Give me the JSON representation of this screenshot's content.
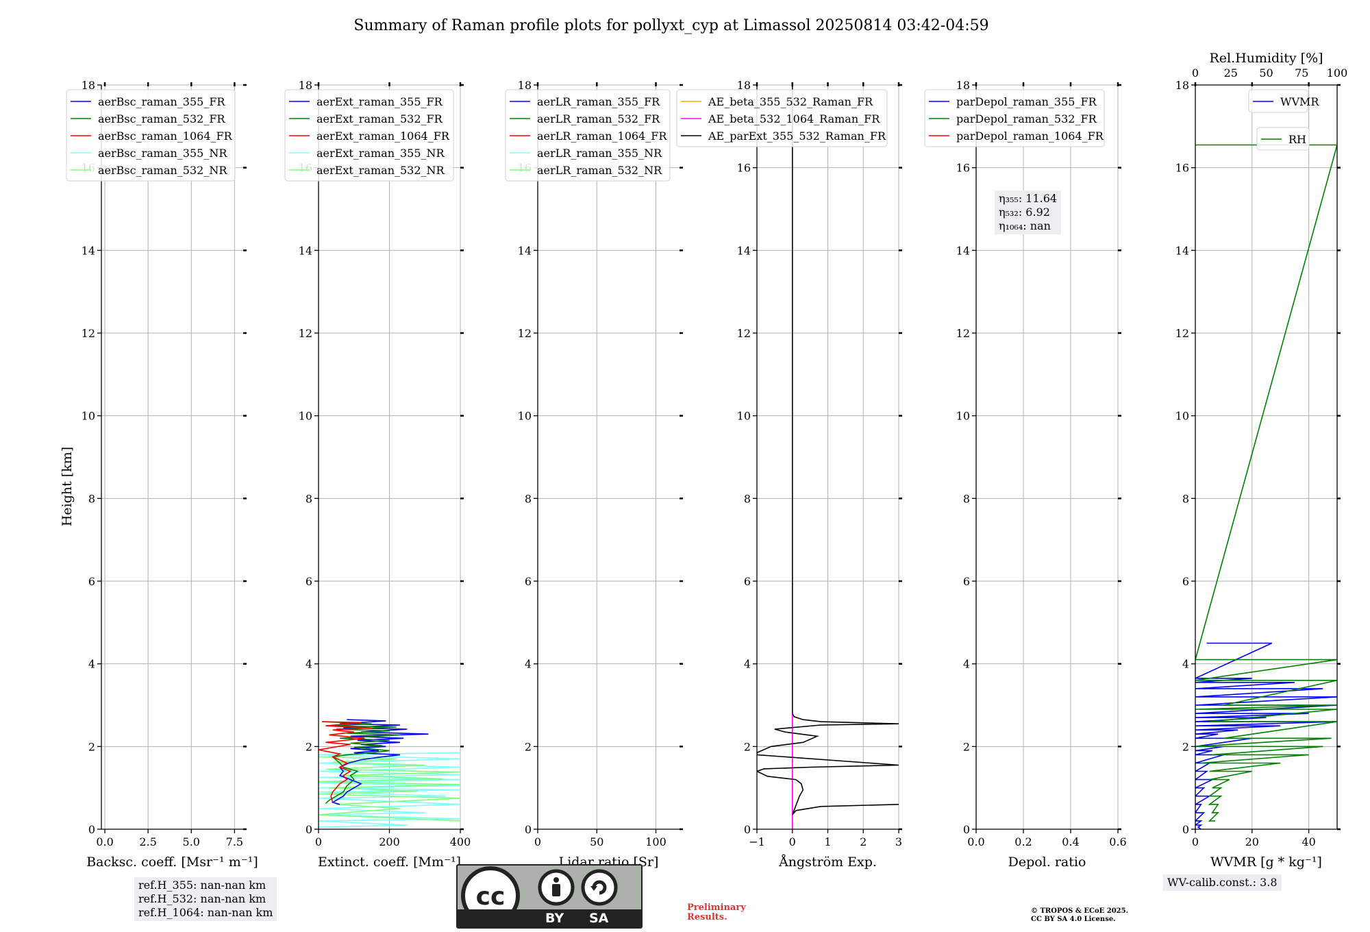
{
  "title": "Summary of Raman profile plots for pollyxt_cyp at Limassol 20250814 03:42-04:59",
  "ylabel": "Height [km]",
  "colors": {
    "blue": "#0000ff",
    "green": "#008000",
    "red": "#ff0000",
    "cyan": "#80ffff",
    "lightgreen": "#80ff80",
    "orange": "#ffa500",
    "magenta": "#ff00ff",
    "black": "#000000",
    "grid": "#b0b0b0"
  },
  "chart_data": [
    {
      "type": "line",
      "id": "bsc",
      "xlabel": "Backsc. coeff. [Msr⁻¹ m⁻¹]",
      "xlim": [
        -0.2,
        8.0
      ],
      "ylim": [
        0,
        18
      ],
      "xticks": [
        0.0,
        2.5,
        5.0,
        7.5
      ],
      "xticklabels": [
        "0.0",
        "2.5",
        "5.0",
        "7.5"
      ],
      "yticks": [
        0,
        2,
        4,
        6,
        8,
        10,
        12,
        14,
        16,
        18
      ],
      "legend": {
        "placement": "top-left",
        "entries": [
          {
            "name": "aerBsc_raman_355_FR",
            "color": "#0000ff"
          },
          {
            "name": "aerBsc_raman_532_FR",
            "color": "#008000"
          },
          {
            "name": "aerBsc_raman_1064_FR",
            "color": "#ff0000"
          },
          {
            "name": "aerBsc_raman_355_NR",
            "color": "#80ffff"
          },
          {
            "name": "aerBsc_raman_532_NR",
            "color": "#80ff80"
          }
        ]
      },
      "series": []
    },
    {
      "type": "line",
      "id": "ext",
      "xlabel": "Extinct. coeff. [Mm⁻¹]",
      "xlim": [
        0,
        400
      ],
      "ylim": [
        0,
        18
      ],
      "xticks": [
        0,
        200,
        400
      ],
      "xticklabels": [
        "0",
        "200",
        "400"
      ],
      "yticks": [
        0,
        2,
        4,
        6,
        8,
        10,
        12,
        14,
        16,
        18
      ],
      "legend": {
        "placement": "top-left",
        "entries": [
          {
            "name": "aerExt_raman_355_FR",
            "color": "#0000ff"
          },
          {
            "name": "aerExt_raman_532_FR",
            "color": "#008000"
          },
          {
            "name": "aerExt_raman_1064_FR",
            "color": "#ff0000"
          },
          {
            "name": "aerExt_raman_355_NR",
            "color": "#80ffff"
          },
          {
            "name": "aerExt_raman_532_NR",
            "color": "#80ff80"
          }
        ]
      },
      "series": [
        {
          "color": "#80ffff",
          "x": [
            400,
            0,
            400,
            0,
            400,
            0,
            400,
            0,
            400,
            0,
            400,
            0,
            400,
            0,
            360,
            0,
            400,
            0,
            300,
            0,
            400,
            0,
            250,
            0
          ],
          "y": [
            1.85,
            1.8,
            1.7,
            1.6,
            1.5,
            1.4,
            1.32,
            1.25,
            1.2,
            1.12,
            1.05,
            1.0,
            0.95,
            0.9,
            0.8,
            0.75,
            0.6,
            0.5,
            0.4,
            0.35,
            0.25,
            0.2,
            0.1,
            0.05
          ]
        },
        {
          "color": "#80ff80",
          "x": [
            0,
            220,
            40,
            300,
            20,
            400,
            60,
            350,
            0,
            400,
            30,
            280,
            0,
            400,
            50,
            230,
            0,
            400
          ],
          "y": [
            1.75,
            1.7,
            1.62,
            1.55,
            1.45,
            1.38,
            1.3,
            1.22,
            1.15,
            1.08,
            1.0,
            0.92,
            0.85,
            0.75,
            0.6,
            0.5,
            0.35,
            0.2
          ]
        },
        {
          "color": "#0000ff",
          "x": [
            80,
            190,
            60,
            230,
            70,
            250,
            120,
            310,
            90,
            240,
            110,
            230,
            120,
            190,
            90,
            170,
            100,
            230,
            180,
            120,
            85,
            60,
            70,
            60,
            90,
            120,
            100,
            80,
            70,
            50,
            40,
            60
          ],
          "y": [
            2.65,
            2.62,
            2.55,
            2.52,
            2.45,
            2.42,
            2.35,
            2.3,
            2.25,
            2.2,
            2.15,
            2.1,
            2.05,
            2.0,
            1.95,
            1.9,
            1.85,
            1.8,
            1.75,
            1.68,
            1.6,
            1.5,
            1.4,
            1.3,
            1.2,
            1.1,
            1.0,
            0.9,
            0.8,
            0.7,
            0.65,
            0.6
          ]
        },
        {
          "color": "#008000",
          "x": [
            10,
            150,
            40,
            220,
            50,
            200,
            80,
            230,
            60,
            200,
            90,
            180,
            100,
            200,
            150,
            80,
            40,
            60,
            70,
            110,
            90,
            100,
            80,
            70,
            50,
            30,
            20
          ],
          "y": [
            2.6,
            2.55,
            2.5,
            2.47,
            2.42,
            2.38,
            2.32,
            2.28,
            2.2,
            2.15,
            2.08,
            2.02,
            1.98,
            1.9,
            1.85,
            1.8,
            1.75,
            1.6,
            1.5,
            1.4,
            1.3,
            1.2,
            1.05,
            0.9,
            0.8,
            0.7,
            0.62
          ]
        },
        {
          "color": "#ff0000",
          "x": [
            10,
            120,
            20,
            150,
            40,
            100,
            30,
            130,
            20,
            90,
            0,
            60,
            40,
            80,
            60,
            90,
            70,
            80,
            60,
            50,
            40,
            35,
            40
          ],
          "y": [
            2.6,
            2.58,
            2.5,
            2.45,
            2.4,
            2.35,
            2.28,
            2.2,
            2.1,
            2.05,
            1.92,
            1.82,
            1.75,
            1.6,
            1.5,
            1.4,
            1.3,
            1.2,
            1.1,
            1.0,
            0.9,
            0.8,
            0.65
          ]
        }
      ]
    },
    {
      "type": "line",
      "id": "lr",
      "xlabel": "Lidar ratio [Sr]",
      "xlim": [
        0,
        120
      ],
      "ylim": [
        0,
        18
      ],
      "xticks": [
        0,
        50,
        100
      ],
      "xticklabels": [
        "0",
        "50",
        "100"
      ],
      "yticks": [
        0,
        2,
        4,
        6,
        8,
        10,
        12,
        14,
        16,
        18
      ],
      "legend": {
        "placement": "top-left",
        "entries": [
          {
            "name": "aerLR_raman_355_FR",
            "color": "#0000ff"
          },
          {
            "name": "aerLR_raman_532_FR",
            "color": "#008000"
          },
          {
            "name": "aerLR_raman_1064_FR",
            "color": "#ff0000"
          },
          {
            "name": "aerLR_raman_355_NR",
            "color": "#80ffff"
          },
          {
            "name": "aerLR_raman_532_NR",
            "color": "#80ff80"
          }
        ]
      },
      "series": []
    },
    {
      "type": "line",
      "id": "ae",
      "xlabel": "Ångström Exp.",
      "xlim": [
        -1,
        3
      ],
      "ylim": [
        0,
        18
      ],
      "xticks": [
        -1,
        0,
        1,
        2,
        3
      ],
      "xticklabels": [
        "−1",
        "0",
        "1",
        "2",
        "3"
      ],
      "yticks": [
        0,
        2,
        4,
        6,
        8,
        10,
        12,
        14,
        16,
        18
      ],
      "legend": {
        "placement": "top",
        "entries": [
          {
            "name": "AE_beta_355_532_Raman_FR",
            "color": "#ffa500"
          },
          {
            "name": "AE_beta_532_1064_Raman_FR",
            "color": "#ff00ff"
          },
          {
            "name": "AE_parExt_355_532_Raman_FR",
            "color": "#000000"
          }
        ]
      },
      "series": [
        {
          "color": "#ff00ff",
          "x": [
            0,
            0
          ],
          "y": [
            0.0,
            2.8
          ]
        },
        {
          "color": "#000000",
          "x": [
            0,
            0
          ],
          "y": [
            2.8,
            18
          ]
        },
        {
          "color": "#000000",
          "x": [
            3,
            0.8,
            0.1,
            0,
            0.2,
            0.3,
            0.25,
            0.1,
            -0.7,
            -1,
            -0.8,
            0.5,
            3,
            -1,
            -1,
            -0.6,
            0.3,
            0.7,
            -0.2,
            -0.5,
            0.8,
            3,
            0.8,
            0.3,
            0.05,
            0
          ],
          "y": [
            0.6,
            0.55,
            0.45,
            0.35,
            0.8,
            0.95,
            1.1,
            1.2,
            1.28,
            1.4,
            1.46,
            1.5,
            1.55,
            1.8,
            1.85,
            2.0,
            2.1,
            2.25,
            2.35,
            2.42,
            2.52,
            2.55,
            2.6,
            2.65,
            2.72,
            2.8
          ]
        }
      ]
    },
    {
      "type": "line",
      "id": "depol",
      "xlabel": "Depol. ratio",
      "xlim": [
        0,
        0.6
      ],
      "ylim": [
        0,
        18
      ],
      "xticks": [
        0,
        0.2,
        0.4,
        0.6
      ],
      "xticklabels": [
        "0.0",
        "0.2",
        "0.4",
        "0.6"
      ],
      "yticks": [
        0,
        2,
        4,
        6,
        8,
        10,
        12,
        14,
        16,
        18
      ],
      "legend": {
        "placement": "top-left",
        "entries": [
          {
            "name": "parDepol_raman_355_FR",
            "color": "#0000ff"
          },
          {
            "name": "parDepol_raman_532_FR",
            "color": "#008000"
          },
          {
            "name": "parDepol_raman_1064_FR",
            "color": "#ff0000"
          }
        ]
      },
      "series": []
    },
    {
      "type": "line",
      "id": "wv",
      "xlabel": "WVMR [g * kg⁻¹]",
      "top_xlabel": "Rel.Humidity [%]",
      "xlim": [
        0,
        50
      ],
      "ylim": [
        0,
        18
      ],
      "top_xlim": [
        0,
        100
      ],
      "xticks": [
        0,
        20,
        40
      ],
      "xticklabels": [
        "0",
        "20",
        "40"
      ],
      "top_xticks": [
        0,
        25,
        50,
        75,
        100
      ],
      "top_xticklabels": [
        "0",
        "25",
        "50",
        "75",
        "100"
      ],
      "yticks": [
        0,
        2,
        4,
        6,
        8,
        10,
        12,
        14,
        16,
        18
      ],
      "legend": {
        "placement": "top-right",
        "entries": [
          {
            "name": "WVMR",
            "color": "#0000ff"
          }
        ]
      },
      "legend2": {
        "placement": "upper-right",
        "entries": [
          {
            "name": "RH",
            "color": "#008000"
          }
        ]
      },
      "series": [
        {
          "color": "#0000ff",
          "x": [
            4,
            27,
            0,
            20,
            0,
            35,
            0,
            45,
            0,
            50,
            0,
            50,
            0,
            40,
            0,
            25,
            0,
            50,
            0,
            30,
            0,
            15,
            0,
            8,
            0,
            20,
            0,
            10,
            0,
            6,
            0,
            10,
            0,
            5,
            0,
            4,
            0,
            6,
            0,
            3,
            0,
            5,
            0,
            2,
            0,
            3,
            0,
            2,
            0,
            2,
            1,
            2
          ],
          "y": [
            4.5,
            4.5,
            3.65,
            3.65,
            3.55,
            3.55,
            3.4,
            3.4,
            3.2,
            3.2,
            3.0,
            3.0,
            2.8,
            2.8,
            2.7,
            2.7,
            2.6,
            2.6,
            2.5,
            2.5,
            2.4,
            2.4,
            2.3,
            2.3,
            2.2,
            2.2,
            2.0,
            2.0,
            1.9,
            1.9,
            1.8,
            1.8,
            1.6,
            1.6,
            1.4,
            1.4,
            1.2,
            1.2,
            1.0,
            1.0,
            0.8,
            0.8,
            0.6,
            0.6,
            0.4,
            0.4,
            0.2,
            0.2,
            0.1,
            0.1,
            0.05,
            0.0
          ]
        },
        {
          "color": "#008000",
          "x": [
            0,
            50,
            0,
            50,
            0,
            50,
            10,
            50,
            0,
            50,
            5,
            50,
            10,
            48,
            0,
            45,
            6,
            40,
            2,
            30,
            5,
            20,
            5,
            12,
            6,
            9,
            5,
            9,
            5,
            8,
            6,
            8,
            5,
            7
          ],
          "y": [
            16.55,
            16.55,
            4.1,
            4.1,
            3.6,
            3.6,
            3.0,
            3.0,
            2.9,
            2.9,
            2.6,
            2.6,
            2.2,
            2.2,
            2.0,
            2.0,
            1.8,
            1.8,
            1.6,
            1.6,
            1.4,
            1.4,
            1.2,
            1.2,
            1.0,
            1.0,
            0.8,
            0.8,
            0.6,
            0.6,
            0.4,
            0.4,
            0.2,
            0.2
          ]
        }
      ]
    }
  ],
  "annotations": {
    "depol_eta": [
      "η₃₅₅: 11.64",
      "η₅₃₂: 6.92",
      "η₁₀₆₄: nan"
    ],
    "ref_heights": [
      "ref.H_355: nan-nan km",
      "ref.H_532: nan-nan km",
      "ref.H_1064: nan-nan km"
    ],
    "wv_calib": "WV-calib.const.: 3.8"
  },
  "license": {
    "left": "BY",
    "right": "SA"
  },
  "preliminary": [
    "Preliminary",
    "Results."
  ],
  "copyright": [
    "© TROPOS & ECoE 2025.",
    "CC BY SA 4.0 License."
  ]
}
